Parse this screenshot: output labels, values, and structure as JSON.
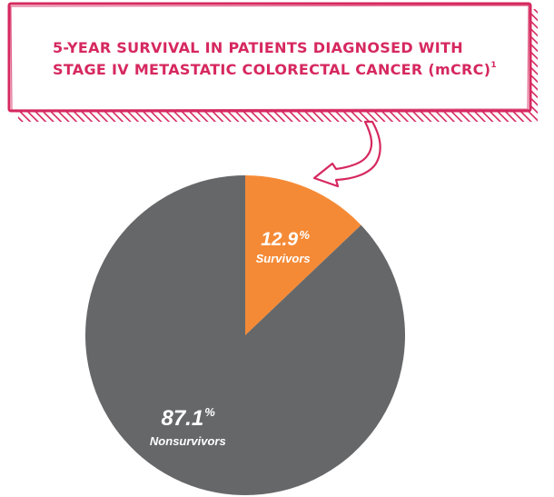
{
  "chart_data": {
    "type": "pie",
    "title": "5-YEAR SURVIVAL IN PATIENTS DIAGNOSED WITH",
    "subtitle": "STAGE IV METASTATIC COLORECTAL CANCER (mCRC)",
    "title_superscript": "1",
    "slices": [
      {
        "label": "Survivors",
        "value": 12.9,
        "value_text": "12.9",
        "color": "#f58a36"
      },
      {
        "label": "Nonsurvivors",
        "value": 87.1,
        "value_text": "87.1",
        "color": "#666769"
      }
    ],
    "value_suffix": "%",
    "legend": "none"
  },
  "colors": {
    "accent": "#d6285f",
    "survivors": "#f58a36",
    "nonsurvivors": "#666769"
  }
}
